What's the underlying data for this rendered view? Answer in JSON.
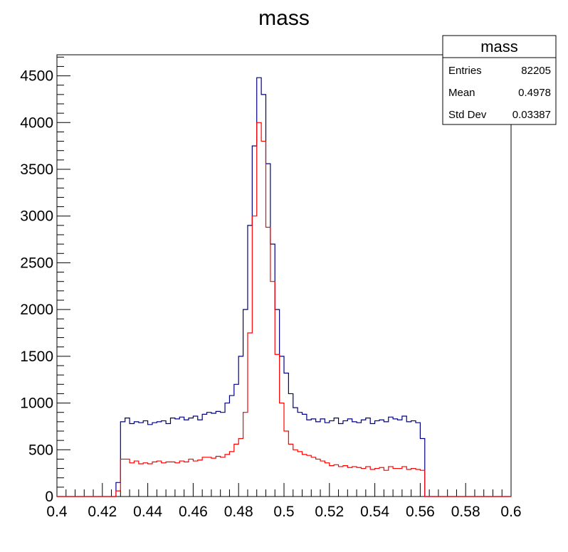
{
  "chart_data": {
    "type": "histogram",
    "title": "mass",
    "xlabel": "",
    "ylabel": "",
    "xlim": [
      0.4,
      0.6
    ],
    "ylim": [
      0,
      4725
    ],
    "grid": false,
    "x_ticks": [
      0.4,
      0.42,
      0.44,
      0.46,
      0.48,
      0.5,
      0.52,
      0.54,
      0.56,
      0.58,
      0.6
    ],
    "x_tick_labels": [
      "0.4",
      "0.42",
      "0.44",
      "0.46",
      "0.48",
      "0.5",
      "0.52",
      "0.54",
      "0.56",
      "0.58",
      "0.6"
    ],
    "y_ticks": [
      0,
      500,
      1000,
      1500,
      2000,
      2500,
      3000,
      3500,
      4000,
      4500
    ],
    "y_tick_labels": [
      "0",
      "500",
      "1000",
      "1500",
      "2000",
      "2500",
      "3000",
      "3500",
      "4000",
      "4500"
    ],
    "bin_edges_start": 0.4,
    "bin_width": 0.002,
    "series": [
      {
        "color": "#000080",
        "values": [
          0,
          0,
          0,
          0,
          0,
          0,
          0,
          0,
          0,
          0,
          0,
          0,
          0,
          150,
          800,
          840,
          780,
          800,
          790,
          810,
          770,
          790,
          800,
          810,
          780,
          840,
          830,
          850,
          820,
          840,
          860,
          820,
          880,
          900,
          890,
          910,
          900,
          1000,
          1080,
          1200,
          1500,
          2000,
          2900,
          3750,
          4480,
          4300,
          3560,
          2700,
          2000,
          1500,
          1320,
          1100,
          950,
          900,
          880,
          820,
          830,
          800,
          830,
          790,
          810,
          840,
          780,
          810,
          830,
          800,
          790,
          820,
          840,
          780,
          810,
          820,
          800,
          850,
          830,
          820,
          860,
          800,
          810,
          790,
          620,
          0,
          0,
          0,
          0,
          0,
          0,
          0,
          0,
          0,
          0,
          0,
          0,
          0,
          0,
          0,
          0,
          0,
          0,
          0
        ]
      },
      {
        "color": "#ff0000",
        "values": [
          0,
          0,
          0,
          0,
          0,
          0,
          0,
          0,
          0,
          0,
          0,
          0,
          0,
          60,
          400,
          400,
          360,
          380,
          350,
          360,
          350,
          370,
          380,
          360,
          370,
          370,
          360,
          380,
          370,
          400,
          380,
          390,
          420,
          420,
          410,
          430,
          420,
          450,
          480,
          560,
          620,
          900,
          1750,
          3000,
          4000,
          3800,
          2880,
          2300,
          1520,
          1000,
          700,
          560,
          500,
          480,
          450,
          440,
          420,
          400,
          380,
          360,
          330,
          340,
          320,
          330,
          310,
          320,
          310,
          300,
          320,
          290,
          300,
          310,
          280,
          320,
          300,
          300,
          320,
          290,
          300,
          290,
          280,
          0,
          0,
          0,
          0,
          0,
          0,
          0,
          0,
          0,
          0,
          0,
          0,
          0,
          0,
          0,
          0,
          0,
          0,
          0
        ]
      }
    ]
  },
  "stats_box": {
    "title": "mass",
    "rows": [
      {
        "label": "Entries",
        "value": "82205"
      },
      {
        "label": "Mean",
        "value": "0.4978"
      },
      {
        "label": "Std Dev",
        "value": "0.03387"
      }
    ]
  }
}
